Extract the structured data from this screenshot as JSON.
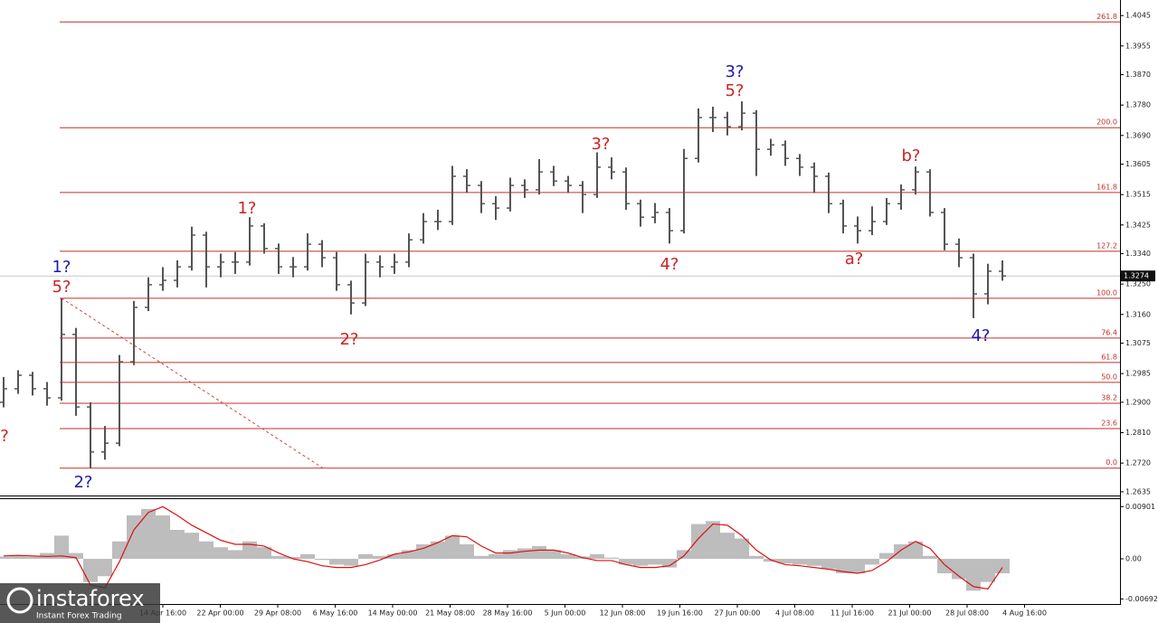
{
  "chart_data": {
    "type": "ohlc",
    "ylim": [
      1.2624,
      1.4091
    ],
    "yticks": [
      1.4045,
      1.3955,
      {
        "value": 1.387,
        "label": "1.3870"
      },
      {
        "value": 1.378,
        "label": "1.3780"
      },
      {
        "value": 1.369,
        "label": "1.3690"
      },
      1.3605,
      1.3515,
      1.3425,
      {
        "value": 1.334,
        "label": "1.3340"
      },
      {
        "value": 1.325,
        "label": "1.3250"
      },
      {
        "value": 1.316,
        "label": "1.3160"
      },
      1.3075,
      1.2985,
      {
        "value": 1.29,
        "label": "1.2900"
      },
      {
        "value": 1.281,
        "label": "1.2810"
      },
      {
        "value": 1.272,
        "label": "1.2720"
      },
      1.2635
    ],
    "xlabels": [
      "14 Apr 16:00",
      "22 Apr 00:00",
      "29 Apr 08:00",
      "6 May 16:00",
      "14 May 00:00",
      "21 May 08:00",
      "28 May 16:00",
      "5 Jun 00:00",
      "12 Jun 08:00",
      "19 Jun 16:00",
      "27 Jun 00:00",
      "4 Jul 08:00",
      "11 Jul 16:00",
      "21 Jul 00:00",
      "28 Jul 08:00",
      "4 Aug 16:00"
    ],
    "bar_color": "#555555",
    "ohlc": [
      [
        1.29,
        1.2975,
        1.2885,
        1.294
      ],
      [
        1.294,
        1.2995,
        1.2925,
        1.298
      ],
      [
        1.298,
        1.299,
        1.292,
        1.294
      ],
      [
        1.294,
        1.296,
        1.289,
        1.2913
      ],
      [
        1.2913,
        1.3208,
        1.2905,
        1.3101
      ],
      [
        1.3101,
        1.312,
        1.286,
        1.2886
      ],
      [
        1.2886,
        1.29,
        1.2705,
        1.2753
      ],
      [
        1.2753,
        1.283,
        1.273,
        1.2779
      ],
      [
        1.2779,
        1.304,
        1.277,
        1.302
      ],
      [
        1.302,
        1.32,
        1.301,
        1.3181
      ],
      [
        1.3181,
        1.327,
        1.317,
        1.3248
      ],
      [
        1.3248,
        1.33,
        1.323,
        1.3261
      ],
      [
        1.3261,
        1.332,
        1.324,
        1.3301
      ],
      [
        1.3301,
        1.342,
        1.329,
        1.3395
      ],
      [
        1.3395,
        1.3405,
        1.324,
        1.3301
      ],
      [
        1.3301,
        1.334,
        1.327,
        1.3315
      ],
      [
        1.3315,
        1.3345,
        1.328,
        1.3315
      ],
      [
        1.3315,
        1.3448,
        1.3305,
        1.3422
      ],
      [
        1.3422,
        1.343,
        1.334,
        1.3355
      ],
      [
        1.3355,
        1.337,
        1.328,
        1.3301
      ],
      [
        1.3301,
        1.333,
        1.327,
        1.3301
      ],
      [
        1.3301,
        1.34,
        1.329,
        1.3368
      ],
      [
        1.3368,
        1.338,
        1.33,
        1.3328
      ],
      [
        1.3328,
        1.3345,
        1.323,
        1.3248
      ],
      [
        1.3248,
        1.326,
        1.316,
        1.3194
      ],
      [
        1.3194,
        1.334,
        1.3185,
        1.3315
      ],
      [
        1.3315,
        1.3335,
        1.327,
        1.3301
      ],
      [
        1.3301,
        1.334,
        1.328,
        1.3315
      ],
      [
        1.3315,
        1.34,
        1.33,
        1.3381
      ],
      [
        1.3381,
        1.346,
        1.337,
        1.3435
      ],
      [
        1.3435,
        1.347,
        1.341,
        1.3435
      ],
      [
        1.3435,
        1.36,
        1.3425,
        1.3569
      ],
      [
        1.3569,
        1.359,
        1.352,
        1.3542
      ],
      [
        1.3542,
        1.3555,
        1.346,
        1.3488
      ],
      [
        1.3488,
        1.351,
        1.344,
        1.3475
      ],
      [
        1.3475,
        1.3565,
        1.3465,
        1.3542
      ],
      [
        1.3542,
        1.356,
        1.3505,
        1.3529
      ],
      [
        1.3529,
        1.362,
        1.3515,
        1.3582
      ],
      [
        1.3582,
        1.36,
        1.354,
        1.3555
      ],
      [
        1.3555,
        1.357,
        1.352,
        1.3542
      ],
      [
        1.3542,
        1.3555,
        1.346,
        1.3515
      ],
      [
        1.3515,
        1.364,
        1.3505,
        1.3596
      ],
      [
        1.3596,
        1.3625,
        1.356,
        1.3582
      ],
      [
        1.3582,
        1.3595,
        1.347,
        1.3488
      ],
      [
        1.3488,
        1.35,
        1.342,
        1.3448
      ],
      [
        1.3448,
        1.349,
        1.343,
        1.3462
      ],
      [
        1.3462,
        1.3475,
        1.337,
        1.3408
      ],
      [
        1.3408,
        1.365,
        1.34,
        1.3622
      ],
      [
        1.3622,
        1.377,
        1.361,
        1.3743
      ],
      [
        1.3743,
        1.3775,
        1.37,
        1.3743
      ],
      [
        1.3743,
        1.376,
        1.369,
        1.3716
      ],
      [
        1.3716,
        1.3791,
        1.3705,
        1.3756
      ],
      [
        1.3756,
        1.3765,
        1.357,
        1.3649
      ],
      [
        1.3649,
        1.368,
        1.363,
        1.3662
      ],
      [
        1.3662,
        1.3675,
        1.36,
        1.3622
      ],
      [
        1.3622,
        1.3635,
        1.357,
        1.3596
      ],
      [
        1.3596,
        1.361,
        1.352,
        1.3569
      ],
      [
        1.3569,
        1.358,
        1.346,
        1.3488
      ],
      [
        1.3488,
        1.35,
        1.34,
        1.3422
      ],
      [
        1.3422,
        1.345,
        1.337,
        1.3408
      ],
      [
        1.3408,
        1.348,
        1.3395,
        1.3435
      ],
      [
        1.3435,
        1.3505,
        1.3425,
        1.3488
      ],
      [
        1.3488,
        1.3545,
        1.347,
        1.3529
      ],
      [
        1.3529,
        1.3598,
        1.3515,
        1.3582
      ],
      [
        1.3582,
        1.359,
        1.345,
        1.3462
      ],
      [
        1.3462,
        1.3475,
        1.335,
        1.3368
      ],
      [
        1.3368,
        1.3385,
        1.33,
        1.3328
      ],
      [
        1.3328,
        1.334,
        1.3149,
        1.3221
      ],
      [
        1.3221,
        1.331,
        1.319,
        1.3288
      ],
      [
        1.3288,
        1.332,
        1.326,
        1.3274
      ]
    ],
    "current_price": 1.3274,
    "fib_color": "#c0302a",
    "fib_levels": [
      {
        "label": "261.8",
        "value": 1.4026
      },
      {
        "label": "200.0",
        "value": 1.3713
      },
      {
        "label": "161.8",
        "value": 1.3521
      },
      {
        "label": "127.2",
        "value": 1.3347
      },
      {
        "label": "100.0",
        "value": 1.3208
      },
      {
        "label": "76.4",
        "value": 1.309
      },
      {
        "label": "61.8",
        "value": 1.3018
      },
      {
        "label": "50.0",
        "value": 1.2959
      },
      {
        "label": "38.2",
        "value": 1.2897
      },
      {
        "label": "23.6",
        "value": 1.2822
      },
      {
        "label": "0.0",
        "value": 1.2705
      }
    ],
    "trendline": [
      1.3208,
      1.2705
    ],
    "annotations": [
      {
        "text": "?",
        "color": "#cc2222"
      },
      {
        "text": "1?",
        "color": "#1a1aaa"
      },
      {
        "text": "5?",
        "color": "#cc2222"
      },
      {
        "text": "2?",
        "color": "#1a1aaa"
      },
      {
        "text": "1?",
        "color": "#cc2222"
      },
      {
        "text": "2?",
        "color": "#cc2222"
      },
      {
        "text": "3?",
        "color": "#cc2222"
      },
      {
        "text": "4?",
        "color": "#cc2222"
      },
      {
        "text": "3?",
        "color": "#1a1aaa"
      },
      {
        "text": "5?",
        "color": "#cc2222"
      },
      {
        "text": "a?",
        "color": "#cc2222"
      },
      {
        "text": "b?",
        "color": "#cc2222"
      },
      {
        "text": "4?",
        "color": "#1a1aaa"
      }
    ],
    "macd": {
      "ylim": [
        -0.0078,
        0.0103
      ],
      "yticks": [
        0.00901,
        {
          "value": 0,
          "label": "0.00"
        },
        -0.00692
      ],
      "hist_color": "#bdbdbd",
      "signal_color": "#dd1111",
      "histogram": [
        0.0004,
        0.0006,
        0.0004,
        0.001,
        0.004,
        0.001,
        -0.004,
        -0.003,
        0.003,
        0.0075,
        0.0086,
        0.0075,
        0.005,
        0.0045,
        0.003,
        0.002,
        0.0015,
        0.003,
        0.002,
        0.0005,
        0.0003,
        0.0008,
        -0.0002,
        -0.001,
        -0.0012,
        0.0008,
        0.0005,
        0.0008,
        0.0015,
        0.0025,
        0.003,
        0.004,
        0.0025,
        0.0005,
        0.0008,
        0.0015,
        0.0018,
        0.0022,
        0.0015,
        0.0008,
        0.0004,
        0.0008,
        0.0002,
        -0.001,
        -0.0012,
        -0.001,
        -0.0015,
        0.0015,
        0.006,
        0.0065,
        0.0045,
        0.0035,
        0.0005,
        -0.0005,
        -0.0008,
        -0.001,
        -0.0012,
        -0.0018,
        -0.0025,
        -0.0025,
        -0.001,
        0.001,
        0.0025,
        0.003,
        0.0005,
        -0.0025,
        -0.0035,
        -0.0055,
        -0.004,
        -0.0025
      ],
      "signal": [
        0.0005,
        0.0006,
        0.0005,
        0.0004,
        0.0005,
        0.0002,
        -0.0045,
        -0.005,
        -0.0005,
        0.005,
        0.008,
        0.009,
        0.0075,
        0.0058,
        0.0045,
        0.0032,
        0.0025,
        0.0025,
        0.0022,
        0.001,
        0.0,
        -0.0005,
        -0.0012,
        -0.0015,
        -0.0015,
        -0.001,
        -0.0002,
        0.0008,
        0.0012,
        0.0018,
        0.0028,
        0.004,
        0.0038,
        0.0022,
        0.001,
        0.001,
        0.0013,
        0.0015,
        0.0015,
        0.001,
        0.0002,
        -0.0003,
        -0.0003,
        -0.001,
        -0.0015,
        -0.0015,
        -0.0012,
        0.0005,
        0.0035,
        0.006,
        0.0058,
        0.004,
        0.0015,
        -0.0002,
        -0.001,
        -0.0012,
        -0.0015,
        -0.0018,
        -0.0022,
        -0.0025,
        -0.002,
        -0.0005,
        0.0015,
        0.003,
        0.0018,
        -0.001,
        -0.003,
        -0.0048,
        -0.0052,
        -0.0015
      ]
    },
    "watermark": {
      "brand": "instaforex",
      "tagline": "Instant Forex Trading"
    }
  }
}
